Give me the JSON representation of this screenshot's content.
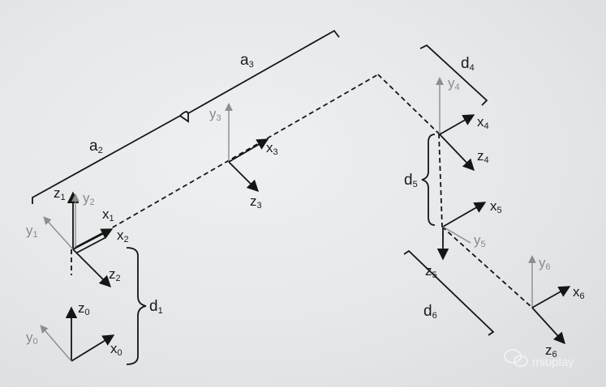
{
  "labels": {
    "z0": [
      "z",
      "0"
    ],
    "x0": [
      "x",
      "0"
    ],
    "y0": [
      "y",
      "0"
    ],
    "z1": [
      "z",
      "1"
    ],
    "y1": [
      "y",
      "1"
    ],
    "x1": [
      "x",
      "1"
    ],
    "y2": [
      "y",
      "2"
    ],
    "x2": [
      "x",
      "2"
    ],
    "z2": [
      "z",
      "2"
    ],
    "y3": [
      "y",
      "3"
    ],
    "x3": [
      "x",
      "3"
    ],
    "z3": [
      "z",
      "3"
    ],
    "y4": [
      "y",
      "4"
    ],
    "x4": [
      "x",
      "4"
    ],
    "z4": [
      "z",
      "4"
    ],
    "x5": [
      "x",
      "5"
    ],
    "y5": [
      "y",
      "5"
    ],
    "z5": [
      "z",
      "5"
    ],
    "y6": [
      "y",
      "6"
    ],
    "x6": [
      "x",
      "6"
    ],
    "z6": [
      "z",
      "6"
    ]
  },
  "dimensions": {
    "d1": [
      "d",
      "1"
    ],
    "a2": [
      "a",
      "2"
    ],
    "a3": [
      "a",
      "3"
    ],
    "d4": [
      "d",
      "4"
    ],
    "d5": [
      "d",
      "5"
    ],
    "d6": [
      "d",
      "6"
    ]
  },
  "watermark": "miuplay",
  "watermark_icon": "wechat-icon"
}
